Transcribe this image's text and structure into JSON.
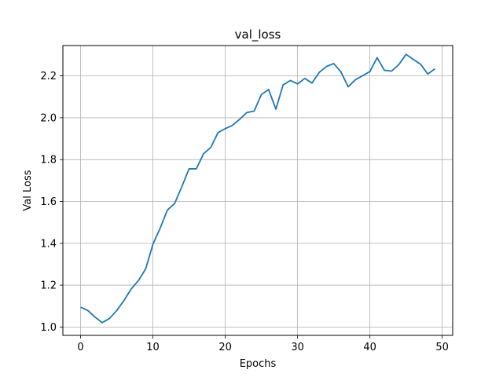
{
  "chart_data": {
    "type": "line",
    "title": "val_loss",
    "xlabel": "Epochs",
    "ylabel": "Val Loss",
    "xlim": [
      -2.45,
      51.45
    ],
    "ylim": [
      0.96,
      2.345
    ],
    "xticks": [
      0,
      10,
      20,
      30,
      40,
      50
    ],
    "yticks": [
      1.0,
      1.2,
      1.4,
      1.6,
      1.8,
      2.0,
      2.2
    ],
    "grid": true,
    "line_color": "#1f77b4",
    "series": [
      {
        "x": [
          0,
          1,
          2,
          3,
          4,
          5,
          6,
          7,
          8,
          9,
          10,
          11,
          12,
          13,
          14,
          15,
          16,
          17,
          18,
          19,
          20,
          21,
          22,
          23,
          24,
          25,
          26,
          27,
          28,
          29,
          30,
          31,
          32,
          33,
          34,
          35,
          36,
          37,
          38,
          39,
          40,
          41,
          42,
          43,
          44,
          45,
          46,
          47,
          48,
          49
        ],
        "values": [
          1.095,
          1.079,
          1.047,
          1.021,
          1.041,
          1.079,
          1.127,
          1.182,
          1.222,
          1.278,
          1.396,
          1.472,
          1.559,
          1.59,
          1.671,
          1.756,
          1.756,
          1.828,
          1.858,
          1.929,
          1.948,
          1.964,
          1.993,
          2.025,
          2.032,
          2.111,
          2.135,
          2.041,
          2.157,
          2.178,
          2.162,
          2.188,
          2.166,
          2.217,
          2.245,
          2.259,
          2.219,
          2.148,
          2.182,
          2.201,
          2.221,
          2.287,
          2.227,
          2.223,
          2.254,
          2.303,
          2.279,
          2.256,
          2.209,
          2.234
        ]
      }
    ]
  }
}
